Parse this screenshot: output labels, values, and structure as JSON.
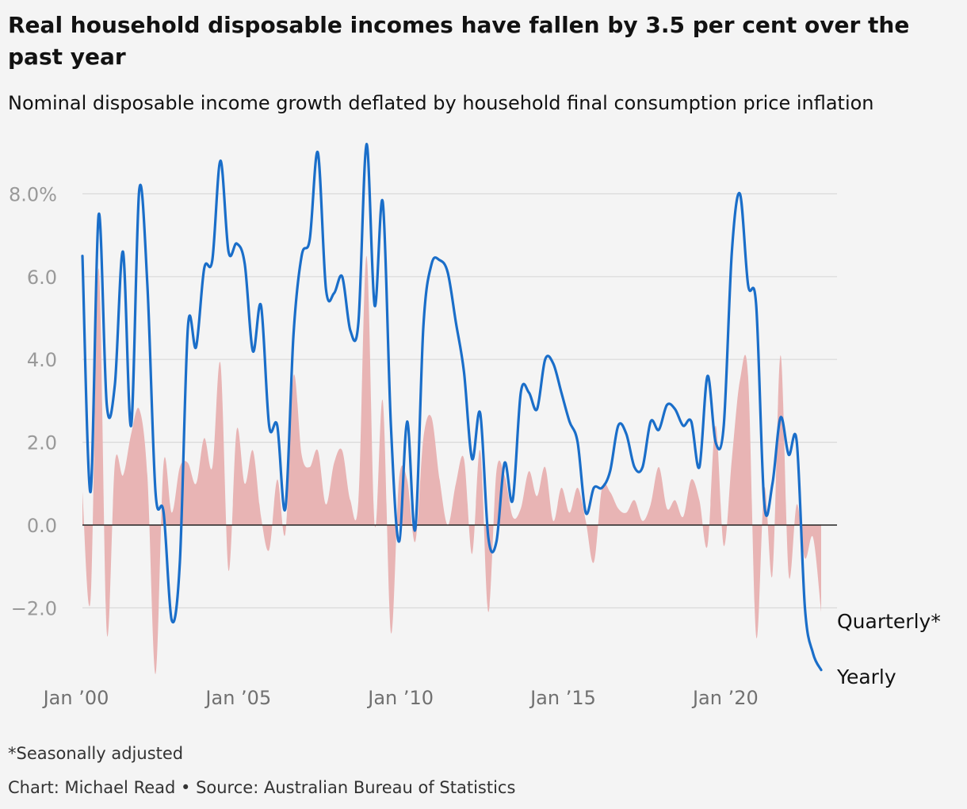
{
  "header": {
    "title": "Real household disposable incomes have fallen by 3.5 per cent over the past year",
    "subtitle": "Nominal disposable income growth deflated by household final consumption price inflation"
  },
  "footer": {
    "footnote": "*Seasonally adjusted",
    "credit": "Chart: Michael Read • Source: Australian Bureau of Statistics"
  },
  "colors": {
    "yearly": "#1a6ec9",
    "quarterly": "#e8b4b4",
    "grid": "#d9d9d9",
    "zero_line": "#222222"
  },
  "chart_data": {
    "type": "area+line",
    "x_unit": "year",
    "xlim": [
      2000.0,
      2022.75
    ],
    "ylim": [
      -3.6,
      9.2
    ],
    "y_ticks": [
      {
        "value": -2,
        "label": "−2.0"
      },
      {
        "value": 0,
        "label": "0.0"
      },
      {
        "value": 2,
        "label": "2.0"
      },
      {
        "value": 4,
        "label": "4.0"
      },
      {
        "value": 6,
        "label": "6.0"
      },
      {
        "value": 8,
        "label": "8.0%"
      }
    ],
    "x_ticks": [
      {
        "value": 2000,
        "label": "Jan ’00"
      },
      {
        "value": 2005,
        "label": "Jan ’05"
      },
      {
        "value": 2010,
        "label": "Jan ’10"
      },
      {
        "value": 2015,
        "label": "Jan ’15"
      },
      {
        "value": 2020,
        "label": "Jan ’20"
      }
    ],
    "grid": true,
    "series": [
      {
        "name": "Quarterly*",
        "style": "area",
        "values": [
          [
            2000.0,
            0.8
          ],
          [
            2000.25,
            -1.8
          ],
          [
            2000.5,
            6.2
          ],
          [
            2000.75,
            -2.6
          ],
          [
            2001.0,
            1.5
          ],
          [
            2001.25,
            1.2
          ],
          [
            2001.5,
            2.2
          ],
          [
            2001.75,
            2.8
          ],
          [
            2002.0,
            1.2
          ],
          [
            2002.25,
            -3.6
          ],
          [
            2002.5,
            1.5
          ],
          [
            2002.75,
            0.3
          ],
          [
            2003.0,
            1.4
          ],
          [
            2003.25,
            1.5
          ],
          [
            2003.5,
            1.0
          ],
          [
            2003.75,
            2.1
          ],
          [
            2004.0,
            1.4
          ],
          [
            2004.25,
            3.9
          ],
          [
            2004.5,
            -1.1
          ],
          [
            2004.75,
            2.3
          ],
          [
            2005.0,
            1.0
          ],
          [
            2005.25,
            1.8
          ],
          [
            2005.5,
            0.2
          ],
          [
            2005.75,
            -0.6
          ],
          [
            2006.0,
            1.1
          ],
          [
            2006.25,
            -0.2
          ],
          [
            2006.5,
            3.6
          ],
          [
            2006.75,
            1.7
          ],
          [
            2007.0,
            1.4
          ],
          [
            2007.25,
            1.8
          ],
          [
            2007.5,
            0.5
          ],
          [
            2007.75,
            1.5
          ],
          [
            2008.0,
            1.8
          ],
          [
            2008.25,
            0.6
          ],
          [
            2008.5,
            0.6
          ],
          [
            2008.75,
            6.5
          ],
          [
            2009.0,
            0.0
          ],
          [
            2009.25,
            3.0
          ],
          [
            2009.5,
            -2.6
          ],
          [
            2009.75,
            1.1
          ],
          [
            2010.0,
            1.1
          ],
          [
            2010.25,
            -0.4
          ],
          [
            2010.5,
            2.1
          ],
          [
            2010.75,
            2.6
          ],
          [
            2011.0,
            1.1
          ],
          [
            2011.25,
            0.0
          ],
          [
            2011.5,
            1.0
          ],
          [
            2011.75,
            1.6
          ],
          [
            2012.0,
            -0.7
          ],
          [
            2012.25,
            1.8
          ],
          [
            2012.5,
            -2.1
          ],
          [
            2012.75,
            1.3
          ],
          [
            2013.0,
            1.2
          ],
          [
            2013.25,
            0.2
          ],
          [
            2013.5,
            0.4
          ],
          [
            2013.75,
            1.3
          ],
          [
            2014.0,
            0.7
          ],
          [
            2014.25,
            1.4
          ],
          [
            2014.5,
            0.1
          ],
          [
            2014.75,
            0.9
          ],
          [
            2015.0,
            0.3
          ],
          [
            2015.25,
            0.9
          ],
          [
            2015.5,
            0.1
          ],
          [
            2015.75,
            -0.9
          ],
          [
            2016.0,
            0.9
          ],
          [
            2016.25,
            0.8
          ],
          [
            2016.5,
            0.4
          ],
          [
            2016.75,
            0.3
          ],
          [
            2017.0,
            0.6
          ],
          [
            2017.25,
            0.1
          ],
          [
            2017.5,
            0.5
          ],
          [
            2017.75,
            1.4
          ],
          [
            2018.0,
            0.4
          ],
          [
            2018.25,
            0.6
          ],
          [
            2018.5,
            0.2
          ],
          [
            2018.75,
            1.1
          ],
          [
            2019.0,
            0.6
          ],
          [
            2019.25,
            -0.5
          ],
          [
            2019.5,
            2.4
          ],
          [
            2019.75,
            -0.5
          ],
          [
            2020.0,
            1.6
          ],
          [
            2020.25,
            3.5
          ],
          [
            2020.5,
            3.6
          ],
          [
            2020.75,
            -2.7
          ],
          [
            2021.0,
            0.9
          ],
          [
            2021.25,
            -1.2
          ],
          [
            2021.5,
            4.1
          ],
          [
            2021.75,
            -1.2
          ],
          [
            2022.0,
            0.5
          ],
          [
            2022.25,
            -0.8
          ],
          [
            2022.5,
            -0.3
          ],
          [
            2022.75,
            -2.1
          ]
        ]
      },
      {
        "name": "Yearly",
        "style": "line",
        "values": [
          [
            2000.0,
            6.5
          ],
          [
            2000.25,
            0.8
          ],
          [
            2000.5,
            7.5
          ],
          [
            2000.75,
            2.9
          ],
          [
            2001.0,
            3.4
          ],
          [
            2001.25,
            6.6
          ],
          [
            2001.5,
            2.4
          ],
          [
            2001.75,
            8.1
          ],
          [
            2002.0,
            5.8
          ],
          [
            2002.25,
            0.8
          ],
          [
            2002.5,
            0.3
          ],
          [
            2002.75,
            -2.3
          ],
          [
            2003.0,
            -0.9
          ],
          [
            2003.25,
            4.8
          ],
          [
            2003.5,
            4.3
          ],
          [
            2003.75,
            6.2
          ],
          [
            2004.0,
            6.4
          ],
          [
            2004.25,
            8.8
          ],
          [
            2004.5,
            6.6
          ],
          [
            2004.75,
            6.8
          ],
          [
            2005.0,
            6.3
          ],
          [
            2005.25,
            4.2
          ],
          [
            2005.5,
            5.3
          ],
          [
            2005.75,
            2.4
          ],
          [
            2006.0,
            2.4
          ],
          [
            2006.25,
            0.4
          ],
          [
            2006.5,
            4.6
          ],
          [
            2006.75,
            6.5
          ],
          [
            2007.0,
            6.9
          ],
          [
            2007.25,
            9.0
          ],
          [
            2007.5,
            5.7
          ],
          [
            2007.75,
            5.6
          ],
          [
            2008.0,
            6.0
          ],
          [
            2008.25,
            4.7
          ],
          [
            2008.5,
            4.9
          ],
          [
            2008.75,
            9.2
          ],
          [
            2009.0,
            5.3
          ],
          [
            2009.25,
            7.8
          ],
          [
            2009.5,
            2.4
          ],
          [
            2009.75,
            -0.4
          ],
          [
            2010.0,
            2.5
          ],
          [
            2010.25,
            -0.1
          ],
          [
            2010.5,
            4.8
          ],
          [
            2010.75,
            6.3
          ],
          [
            2011.0,
            6.4
          ],
          [
            2011.25,
            6.1
          ],
          [
            2011.5,
            4.9
          ],
          [
            2011.75,
            3.7
          ],
          [
            2012.0,
            1.6
          ],
          [
            2012.25,
            2.7
          ],
          [
            2012.5,
            -0.3
          ],
          [
            2012.75,
            -0.4
          ],
          [
            2013.0,
            1.5
          ],
          [
            2013.25,
            0.6
          ],
          [
            2013.5,
            3.2
          ],
          [
            2013.75,
            3.2
          ],
          [
            2014.0,
            2.8
          ],
          [
            2014.25,
            4.0
          ],
          [
            2014.5,
            3.9
          ],
          [
            2014.75,
            3.2
          ],
          [
            2015.0,
            2.5
          ],
          [
            2015.25,
            2.0
          ],
          [
            2015.5,
            0.3
          ],
          [
            2015.75,
            0.9
          ],
          [
            2016.0,
            0.9
          ],
          [
            2016.25,
            1.3
          ],
          [
            2016.5,
            2.4
          ],
          [
            2016.75,
            2.2
          ],
          [
            2017.0,
            1.4
          ],
          [
            2017.25,
            1.4
          ],
          [
            2017.5,
            2.5
          ],
          [
            2017.75,
            2.3
          ],
          [
            2018.0,
            2.9
          ],
          [
            2018.25,
            2.8
          ],
          [
            2018.5,
            2.4
          ],
          [
            2018.75,
            2.5
          ],
          [
            2019.0,
            1.4
          ],
          [
            2019.25,
            3.6
          ],
          [
            2019.5,
            2.0
          ],
          [
            2019.75,
            2.4
          ],
          [
            2020.0,
            6.6
          ],
          [
            2020.25,
            8.0
          ],
          [
            2020.5,
            5.8
          ],
          [
            2020.75,
            5.3
          ],
          [
            2021.0,
            0.5
          ],
          [
            2021.25,
            1.0
          ],
          [
            2021.5,
            2.6
          ],
          [
            2021.75,
            1.7
          ],
          [
            2022.0,
            2.0
          ],
          [
            2022.25,
            -2.0
          ],
          [
            2022.5,
            -3.1
          ],
          [
            2022.75,
            -3.5
          ]
        ]
      }
    ]
  }
}
